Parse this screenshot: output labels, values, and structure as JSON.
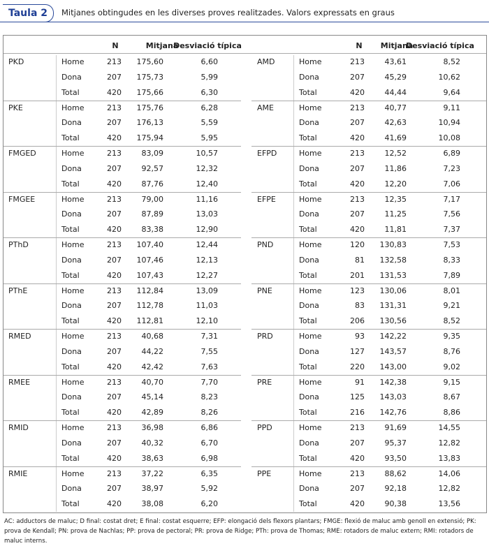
{
  "header": {
    "label": "Taula 2",
    "title": "Mitjanes obtingudes en les diverses proves realitzades. Valors expressats en graus"
  },
  "table": {
    "columns": [
      "N",
      "Mitjana",
      "Desviació típica"
    ],
    "groups": [
      {
        "left": {
          "name": "PKD",
          "rows": [
            [
              "Home",
              "213",
              "175,60",
              "6,60"
            ],
            [
              "Dona",
              "207",
              "175,73",
              "5,99"
            ],
            [
              "Total",
              "420",
              "175,66",
              "6,30"
            ]
          ]
        },
        "right": {
          "name": "AMD",
          "rows": [
            [
              "Home",
              "213",
              "43,61",
              "8,52"
            ],
            [
              "Dona",
              "207",
              "45,29",
              "10,62"
            ],
            [
              "Total",
              "420",
              "44,44",
              "9,64"
            ]
          ]
        }
      },
      {
        "left": {
          "name": "PKE",
          "rows": [
            [
              "Home",
              "213",
              "175,76",
              "6,28"
            ],
            [
              "Dona",
              "207",
              "176,13",
              "5,59"
            ],
            [
              "Total",
              "420",
              "175,94",
              "5,95"
            ]
          ]
        },
        "right": {
          "name": "AME",
          "rows": [
            [
              "Home",
              "213",
              "40,77",
              "9,11"
            ],
            [
              "Dona",
              "207",
              "42,63",
              "10,94"
            ],
            [
              "Total",
              "420",
              "41,69",
              "10,08"
            ]
          ]
        }
      },
      {
        "left": {
          "name": "FMGED",
          "rows": [
            [
              "Home",
              "213",
              "83,09",
              "10,57"
            ],
            [
              "Dona",
              "207",
              "92,57",
              "12,32"
            ],
            [
              "Total",
              "420",
              "87,76",
              "12,40"
            ]
          ]
        },
        "right": {
          "name": "EFPD",
          "rows": [
            [
              "Home",
              "213",
              "12,52",
              "6,89"
            ],
            [
              "Dona",
              "207",
              "11,86",
              "7,23"
            ],
            [
              "Total",
              "420",
              "12,20",
              "7,06"
            ]
          ]
        }
      },
      {
        "left": {
          "name": "FMGEE",
          "rows": [
            [
              "Home",
              "213",
              "79,00",
              "11,16"
            ],
            [
              "Dona",
              "207",
              "87,89",
              "13,03"
            ],
            [
              "Total",
              "420",
              "83,38",
              "12,90"
            ]
          ]
        },
        "right": {
          "name": "EFPE",
          "rows": [
            [
              "Home",
              "213",
              "12,35",
              "7,17"
            ],
            [
              "Dona",
              "207",
              "11,25",
              "7,56"
            ],
            [
              "Total",
              "420",
              "11,81",
              "7,37"
            ]
          ]
        }
      },
      {
        "left": {
          "name": "PThD",
          "rows": [
            [
              "Home",
              "213",
              "107,40",
              "12,44"
            ],
            [
              "Dona",
              "207",
              "107,46",
              "12,13"
            ],
            [
              "Total",
              "420",
              "107,43",
              "12,27"
            ]
          ]
        },
        "right": {
          "name": "PND",
          "rows": [
            [
              "Home",
              "120",
              "130,83",
              "7,53"
            ],
            [
              "Dona",
              "81",
              "132,58",
              "8,33"
            ],
            [
              "Total",
              "201",
              "131,53",
              "7,89"
            ]
          ]
        }
      },
      {
        "left": {
          "name": "PThE",
          "rows": [
            [
              "Home",
              "213",
              "112,84",
              "13,09"
            ],
            [
              "Dona",
              "207",
              "112,78",
              "11,03"
            ],
            [
              "Total",
              "420",
              "112,81",
              "12,10"
            ]
          ]
        },
        "right": {
          "name": "PNE",
          "rows": [
            [
              "Home",
              "123",
              "130,06",
              "8,01"
            ],
            [
              "Dona",
              "83",
              "131,31",
              "9,21"
            ],
            [
              "Total",
              "206",
              "130,56",
              "8,52"
            ]
          ]
        }
      },
      {
        "left": {
          "name": "RMED",
          "rows": [
            [
              "Home",
              "213",
              "40,68",
              "7,31"
            ],
            [
              "Dona",
              "207",
              "44,22",
              "7,55"
            ],
            [
              "Total",
              "420",
              "42,42",
              "7,63"
            ]
          ]
        },
        "right": {
          "name": "PRD",
          "rows": [
            [
              "Home",
              "93",
              "142,22",
              "9,35"
            ],
            [
              "Dona",
              "127",
              "143,57",
              "8,76"
            ],
            [
              "Total",
              "220",
              "143,00",
              "9,02"
            ]
          ]
        }
      },
      {
        "left": {
          "name": "RMEE",
          "rows": [
            [
              "Home",
              "213",
              "40,70",
              "7,70"
            ],
            [
              "Dona",
              "207",
              "45,14",
              "8,23"
            ],
            [
              "Total",
              "420",
              "42,89",
              "8,26"
            ]
          ]
        },
        "right": {
          "name": "PRE",
          "rows": [
            [
              "Home",
              "91",
              "142,38",
              "9,15"
            ],
            [
              "Dona",
              "125",
              "143,03",
              "8,67"
            ],
            [
              "Total",
              "216",
              "142,76",
              "8,86"
            ]
          ]
        }
      },
      {
        "left": {
          "name": "RMID",
          "rows": [
            [
              "Home",
              "213",
              "36,98",
              "6,86"
            ],
            [
              "Dona",
              "207",
              "40,32",
              "6,70"
            ],
            [
              "Total",
              "420",
              "38,63",
              "6,98"
            ]
          ]
        },
        "right": {
          "name": "PPD",
          "rows": [
            [
              "Home",
              "213",
              "91,69",
              "14,55"
            ],
            [
              "Dona",
              "207",
              "95,37",
              "12,82"
            ],
            [
              "Total",
              "420",
              "93,50",
              "13,83"
            ]
          ]
        }
      },
      {
        "left": {
          "name": "RMIE",
          "rows": [
            [
              "Home",
              "213",
              "37,22",
              "6,35"
            ],
            [
              "Dona",
              "207",
              "38,97",
              "5,92"
            ],
            [
              "Total",
              "420",
              "38,08",
              "6,20"
            ]
          ]
        },
        "right": {
          "name": "PPE",
          "rows": [
            [
              "Home",
              "213",
              "88,62",
              "14,06"
            ],
            [
              "Dona",
              "207",
              "92,18",
              "12,82"
            ],
            [
              "Total",
              "420",
              "90,38",
              "13,56"
            ]
          ]
        }
      }
    ]
  },
  "footnote": "AC: adductors de maluc; D final: costat dret; E final: costat esquerre; EFP: elongació dels flexors plantars; FMGE: flexió de maluc amb genoll en extensió; PK: prova de Kendall; PN: prova de Nachlas; PP: prova de pectoral; PR: prova de Ridge; PTh: prova de Thomas; RME: rotadors de maluc extern; RMI: rotadors de maluc interns."
}
